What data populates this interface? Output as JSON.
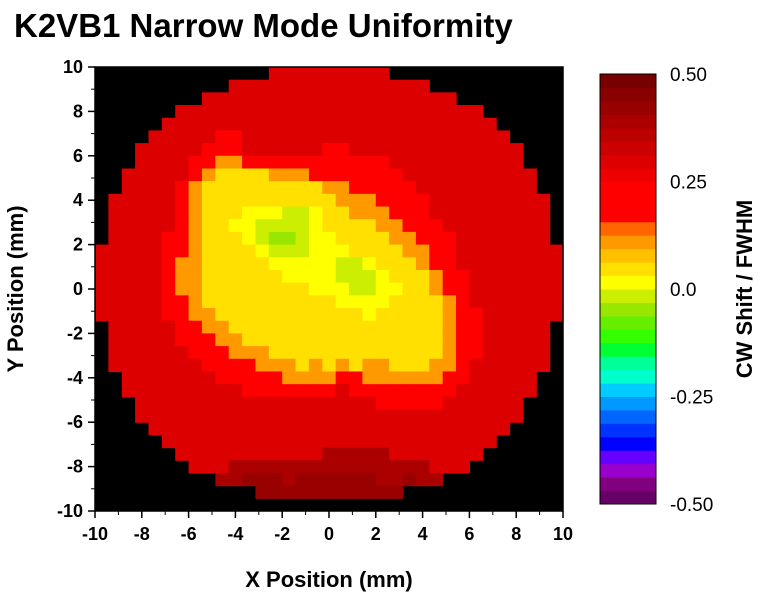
{
  "chart_data": {
    "type": "heatmap",
    "title": "K2VB1 Narrow Mode Uniformity",
    "xlabel": "X Position (mm)",
    "ylabel": "Y Position (mm)",
    "colorbar_label": "CW Shift / FWHM",
    "xlim": [
      -10,
      10
    ],
    "ylim": [
      -10,
      10
    ],
    "x_ticks": [
      -10,
      -8,
      -6,
      -4,
      -2,
      0,
      2,
      4,
      6,
      8,
      10
    ],
    "y_ticks": [
      -10,
      -8,
      -6,
      -4,
      -2,
      0,
      2,
      4,
      6,
      8,
      10
    ],
    "x_tick_labels": [
      "-10",
      "-8",
      "-6",
      "-4",
      "-2",
      "0",
      "2",
      "4",
      "6",
      "8",
      "10"
    ],
    "y_tick_labels": [
      "-10",
      "-8",
      "-6",
      "-4",
      "-2",
      "0",
      "2",
      "4",
      "6",
      "8",
      "10"
    ],
    "colorbar_range": [
      -0.5,
      0.5
    ],
    "colorbar_ticks": [
      0.5,
      0.25,
      0.0,
      -0.25,
      -0.5
    ],
    "colorbar_tick_labels": [
      "0.50",
      "0.25",
      "0.0",
      "-0.25",
      "-0.50"
    ],
    "colorscale": [
      "#660066",
      "#800080",
      "#9900cc",
      "#6600ff",
      "#0000ff",
      "#0033ff",
      "#0066ff",
      "#0099ff",
      "#00ccff",
      "#00ffcc",
      "#00ff99",
      "#00ff33",
      "#33ff00",
      "#66ee00",
      "#99e600",
      "#ccee00",
      "#ffff00",
      "#ffe000",
      "#ffc000",
      "#ff9900",
      "#ff6600",
      "#ff0000",
      "#ff0000",
      "#ff0000",
      "#ee0000",
      "#dd0000",
      "#cc0000",
      "#bb0000",
      "#aa0000",
      "#990000",
      "#880000",
      "#770000"
    ],
    "background_color": "#000000",
    "grid": false,
    "z_grid_layout": "rows listed from y=+10 (top) to y=-10 (bottom), 35 columns from x=-10 to x=+10; cell values are CW shift / FWHM; null = no data",
    "z": [
      [
        null,
        null,
        null,
        null,
        null,
        null,
        null,
        null,
        null,
        null,
        null,
        null,
        null,
        0.3,
        0.3,
        0.3,
        0.3,
        0.3,
        0.3,
        0.3,
        0.3,
        0.3,
        null,
        null,
        null,
        null,
        null,
        null,
        null,
        null,
        null,
        null,
        null,
        null,
        null
      ],
      [
        null,
        null,
        null,
        null,
        null,
        null,
        null,
        null,
        null,
        null,
        0.3,
        0.3,
        0.3,
        0.3,
        0.3,
        0.3,
        0.3,
        0.3,
        0.3,
        0.3,
        0.3,
        0.3,
        0.3,
        0.3,
        0.3,
        null,
        null,
        null,
        null,
        null,
        null,
        null,
        null,
        null,
        null
      ],
      [
        null,
        null,
        null,
        null,
        null,
        null,
        null,
        null,
        0.3,
        0.3,
        0.3,
        0.3,
        0.3,
        0.3,
        0.3,
        0.3,
        0.3,
        0.3,
        0.3,
        0.3,
        0.3,
        0.3,
        0.3,
        0.3,
        0.3,
        0.3,
        0.3,
        null,
        null,
        null,
        null,
        null,
        null,
        null,
        null
      ],
      [
        null,
        null,
        null,
        null,
        null,
        null,
        0.3,
        0.3,
        0.3,
        0.3,
        0.3,
        0.3,
        0.3,
        0.3,
        0.3,
        0.3,
        0.3,
        0.3,
        0.3,
        0.3,
        0.3,
        0.3,
        0.3,
        0.3,
        0.3,
        0.3,
        0.3,
        0.3,
        0.3,
        null,
        null,
        null,
        null,
        null,
        null
      ],
      [
        null,
        null,
        null,
        null,
        null,
        0.3,
        0.3,
        0.3,
        0.3,
        0.3,
        0.3,
        0.3,
        0.3,
        0.3,
        0.3,
        0.3,
        0.3,
        0.3,
        0.3,
        0.3,
        0.3,
        0.3,
        0.3,
        0.3,
        0.3,
        0.3,
        0.3,
        0.3,
        0.3,
        0.3,
        null,
        null,
        null,
        null,
        null
      ],
      [
        null,
        null,
        null,
        null,
        0.3,
        0.3,
        0.3,
        0.3,
        0.3,
        0.2,
        0.2,
        0.3,
        0.3,
        0.3,
        0.3,
        0.3,
        0.3,
        0.3,
        0.3,
        0.3,
        0.3,
        0.3,
        0.3,
        0.3,
        0.3,
        0.3,
        0.3,
        0.3,
        0.3,
        0.3,
        0.3,
        null,
        null,
        null,
        null
      ],
      [
        null,
        null,
        null,
        0.3,
        0.3,
        0.3,
        0.3,
        0.3,
        0.2,
        0.2,
        0.2,
        0.3,
        0.3,
        0.3,
        0.3,
        0.3,
        0.3,
        0.2,
        0.2,
        0.3,
        0.3,
        0.3,
        0.3,
        0.3,
        0.3,
        0.3,
        0.3,
        0.3,
        0.3,
        0.3,
        0.3,
        0.3,
        null,
        null,
        null
      ],
      [
        null,
        null,
        null,
        0.3,
        0.3,
        0.3,
        0.3,
        0.2,
        0.2,
        0.12,
        0.12,
        0.2,
        0.2,
        0.2,
        0.2,
        0.2,
        0.2,
        0.2,
        0.2,
        0.2,
        0.2,
        0.2,
        0.3,
        0.3,
        0.3,
        0.3,
        0.3,
        0.3,
        0.3,
        0.3,
        0.3,
        0.3,
        null,
        null,
        null
      ],
      [
        null,
        null,
        0.3,
        0.3,
        0.3,
        0.3,
        0.3,
        0.2,
        0.12,
        0.04,
        0.04,
        0.04,
        0.04,
        0.12,
        0.12,
        0.12,
        0.2,
        0.2,
        0.2,
        0.2,
        0.2,
        0.2,
        0.2,
        0.3,
        0.3,
        0.3,
        0.3,
        0.3,
        0.3,
        0.3,
        0.3,
        0.3,
        0.3,
        null,
        null
      ],
      [
        null,
        null,
        0.3,
        0.3,
        0.3,
        0.3,
        0.2,
        0.12,
        0.04,
        0.04,
        0.04,
        0.04,
        0.04,
        0.04,
        0.04,
        0.04,
        0.04,
        0.12,
        0.12,
        0.2,
        0.2,
        0.2,
        0.2,
        0.2,
        0.3,
        0.3,
        0.3,
        0.3,
        0.3,
        0.3,
        0.3,
        0.3,
        0.3,
        null,
        null
      ],
      [
        null,
        0.3,
        0.3,
        0.3,
        0.3,
        0.3,
        0.2,
        0.12,
        0.04,
        0.04,
        0.04,
        0.04,
        0.04,
        0.04,
        0.04,
        0.04,
        0.04,
        0.04,
        0.12,
        0.12,
        0.12,
        0.2,
        0.2,
        0.2,
        0.2,
        0.3,
        0.3,
        0.3,
        0.3,
        0.3,
        0.3,
        0.3,
        0.3,
        0.3,
        null
      ],
      [
        null,
        0.3,
        0.3,
        0.3,
        0.3,
        0.3,
        0.2,
        0.12,
        0.04,
        0.04,
        0.04,
        0.0,
        0.0,
        0.0,
        -0.03,
        -0.03,
        0.0,
        0.04,
        0.04,
        0.12,
        0.12,
        0.12,
        0.2,
        0.2,
        0.2,
        0.3,
        0.3,
        0.3,
        0.3,
        0.3,
        0.3,
        0.3,
        0.3,
        0.3,
        null
      ],
      [
        null,
        0.3,
        0.3,
        0.3,
        0.3,
        0.3,
        0.2,
        0.12,
        0.04,
        0.04,
        0.0,
        0.0,
        -0.03,
        -0.03,
        -0.03,
        -0.03,
        0.0,
        0.04,
        0.04,
        0.04,
        0.04,
        0.12,
        0.12,
        0.2,
        0.2,
        0.2,
        0.3,
        0.3,
        0.3,
        0.3,
        0.3,
        0.3,
        0.3,
        0.3,
        null
      ],
      [
        null,
        0.3,
        0.3,
        0.3,
        0.3,
        0.2,
        0.2,
        0.12,
        0.04,
        0.04,
        0.04,
        0.0,
        -0.03,
        -0.05,
        -0.05,
        -0.03,
        0.0,
        0.0,
        0.04,
        0.04,
        0.04,
        0.04,
        0.12,
        0.12,
        0.2,
        0.2,
        0.2,
        0.3,
        0.3,
        0.3,
        0.3,
        0.3,
        0.3,
        0.3,
        null
      ],
      [
        0.3,
        0.3,
        0.3,
        0.3,
        0.3,
        0.2,
        0.2,
        0.12,
        0.04,
        0.04,
        0.04,
        0.04,
        0.0,
        -0.03,
        -0.03,
        -0.03,
        0.0,
        0.0,
        0.0,
        0.04,
        0.04,
        0.04,
        0.04,
        0.12,
        0.12,
        0.2,
        0.2,
        0.3,
        0.3,
        0.3,
        0.3,
        0.3,
        0.3,
        0.3,
        0.3
      ],
      [
        0.3,
        0.3,
        0.3,
        0.3,
        0.3,
        0.2,
        0.12,
        0.12,
        0.04,
        0.04,
        0.04,
        0.04,
        0.04,
        0.0,
        0.0,
        0.0,
        0.0,
        0.0,
        -0.03,
        -0.03,
        0.0,
        0.04,
        0.04,
        0.04,
        0.12,
        0.2,
        0.2,
        0.3,
        0.3,
        0.3,
        0.3,
        0.3,
        0.3,
        0.3,
        0.3
      ],
      [
        0.3,
        0.3,
        0.3,
        0.3,
        0.3,
        0.2,
        0.12,
        0.12,
        0.04,
        0.04,
        0.04,
        0.04,
        0.04,
        0.04,
        0.0,
        0.0,
        0.0,
        0.0,
        -0.03,
        -0.03,
        -0.03,
        0.0,
        0.04,
        0.04,
        0.04,
        0.12,
        0.2,
        0.2,
        0.3,
        0.3,
        0.3,
        0.3,
        0.3,
        0.3,
        0.3
      ],
      [
        0.3,
        0.3,
        0.3,
        0.3,
        0.3,
        0.2,
        0.12,
        0.12,
        0.04,
        0.04,
        0.04,
        0.04,
        0.04,
        0.04,
        0.04,
        0.04,
        0.0,
        0.0,
        0.0,
        -0.03,
        -0.03,
        0.0,
        0.0,
        0.04,
        0.04,
        0.12,
        0.2,
        0.2,
        0.3,
        0.3,
        0.3,
        0.3,
        0.3,
        0.3,
        0.3
      ],
      [
        0.3,
        0.3,
        0.3,
        0.3,
        0.3,
        0.2,
        0.2,
        0.12,
        0.04,
        0.04,
        0.04,
        0.04,
        0.04,
        0.04,
        0.04,
        0.04,
        0.04,
        0.04,
        0.0,
        0.0,
        0.0,
        0.0,
        0.04,
        0.04,
        0.04,
        0.04,
        0.12,
        0.2,
        0.3,
        0.3,
        0.3,
        0.3,
        0.3,
        0.3,
        0.3
      ],
      [
        0.3,
        0.3,
        0.3,
        0.3,
        0.3,
        0.2,
        0.2,
        0.12,
        0.12,
        0.04,
        0.04,
        0.04,
        0.04,
        0.04,
        0.04,
        0.04,
        0.04,
        0.04,
        0.04,
        0.04,
        0.0,
        0.04,
        0.04,
        0.04,
        0.04,
        0.04,
        0.12,
        0.2,
        0.2,
        0.3,
        0.3,
        0.3,
        0.3,
        0.3,
        0.3
      ],
      [
        null,
        0.3,
        0.3,
        0.3,
        0.3,
        0.3,
        0.2,
        0.2,
        0.12,
        0.12,
        0.04,
        0.04,
        0.04,
        0.04,
        0.04,
        0.04,
        0.04,
        0.04,
        0.04,
        0.04,
        0.04,
        0.04,
        0.04,
        0.04,
        0.04,
        0.04,
        0.12,
        0.2,
        0.2,
        0.3,
        0.3,
        0.3,
        0.3,
        0.3,
        null
      ],
      [
        null,
        0.3,
        0.3,
        0.3,
        0.3,
        0.3,
        0.2,
        0.2,
        0.2,
        0.12,
        0.12,
        0.04,
        0.04,
        0.04,
        0.04,
        0.04,
        0.04,
        0.04,
        0.04,
        0.04,
        0.04,
        0.04,
        0.04,
        0.04,
        0.04,
        0.04,
        0.12,
        0.2,
        0.2,
        0.3,
        0.3,
        0.3,
        0.3,
        0.3,
        null
      ],
      [
        null,
        0.3,
        0.3,
        0.3,
        0.3,
        0.3,
        0.3,
        0.2,
        0.2,
        0.2,
        0.12,
        0.12,
        0.12,
        0.04,
        0.04,
        0.04,
        0.04,
        0.04,
        0.04,
        0.04,
        0.04,
        0.04,
        0.04,
        0.04,
        0.04,
        0.04,
        0.12,
        0.2,
        0.2,
        0.3,
        0.3,
        0.3,
        0.3,
        0.3,
        null
      ],
      [
        null,
        0.3,
        0.3,
        0.3,
        0.3,
        0.3,
        0.3,
        0.3,
        0.2,
        0.2,
        0.2,
        0.2,
        0.12,
        0.12,
        0.12,
        0.04,
        0.12,
        0.04,
        0.12,
        0.04,
        0.12,
        0.12,
        0.04,
        0.04,
        0.04,
        0.12,
        0.12,
        0.2,
        0.3,
        0.3,
        0.3,
        0.3,
        0.3,
        0.3,
        null
      ],
      [
        null,
        null,
        0.3,
        0.3,
        0.3,
        0.3,
        0.3,
        0.3,
        0.3,
        0.2,
        0.2,
        0.2,
        0.2,
        0.2,
        0.12,
        0.12,
        0.12,
        0.12,
        0.2,
        0.2,
        0.12,
        0.12,
        0.12,
        0.12,
        0.12,
        0.12,
        0.2,
        0.2,
        0.3,
        0.3,
        0.3,
        0.3,
        0.3,
        null,
        null
      ],
      [
        null,
        null,
        0.3,
        0.3,
        0.3,
        0.3,
        0.3,
        0.3,
        0.3,
        0.3,
        0.3,
        0.2,
        0.2,
        0.2,
        0.2,
        0.2,
        0.2,
        0.2,
        0.3,
        0.2,
        0.2,
        0.2,
        0.2,
        0.2,
        0.2,
        0.2,
        0.2,
        0.3,
        0.3,
        0.3,
        0.3,
        0.3,
        0.3,
        null,
        null
      ],
      [
        null,
        null,
        null,
        0.3,
        0.3,
        0.3,
        0.3,
        0.3,
        0.3,
        0.3,
        0.3,
        0.3,
        0.3,
        0.3,
        0.3,
        0.3,
        0.3,
        0.3,
        0.3,
        0.3,
        0.3,
        0.2,
        0.2,
        0.2,
        0.2,
        0.2,
        0.3,
        0.3,
        0.3,
        0.3,
        0.3,
        0.3,
        null,
        null,
        null
      ],
      [
        null,
        null,
        null,
        0.3,
        0.3,
        0.3,
        0.3,
        0.3,
        0.3,
        0.3,
        0.3,
        0.3,
        0.3,
        0.3,
        0.3,
        0.3,
        0.3,
        0.3,
        0.3,
        0.3,
        0.3,
        0.3,
        0.3,
        0.3,
        0.3,
        0.3,
        0.3,
        0.3,
        0.3,
        0.3,
        0.3,
        0.3,
        null,
        null,
        null
      ],
      [
        null,
        null,
        null,
        null,
        0.3,
        0.3,
        0.3,
        0.3,
        0.3,
        0.3,
        0.3,
        0.3,
        0.3,
        0.3,
        0.3,
        0.3,
        0.3,
        0.3,
        0.3,
        0.3,
        0.3,
        0.3,
        0.3,
        0.3,
        0.3,
        0.3,
        0.3,
        0.3,
        0.3,
        0.3,
        0.3,
        null,
        null,
        null,
        null
      ],
      [
        null,
        null,
        null,
        null,
        null,
        0.3,
        0.3,
        0.3,
        0.3,
        0.3,
        0.3,
        0.3,
        0.3,
        0.3,
        0.3,
        0.3,
        0.3,
        0.3,
        0.3,
        0.3,
        0.3,
        0.3,
        0.3,
        0.3,
        0.3,
        0.3,
        0.3,
        0.3,
        0.3,
        0.3,
        null,
        null,
        null,
        null,
        null
      ],
      [
        null,
        null,
        null,
        null,
        null,
        null,
        0.3,
        0.3,
        0.3,
        0.3,
        0.3,
        0.3,
        0.3,
        0.3,
        0.3,
        0.3,
        0.3,
        0.38,
        0.38,
        0.38,
        0.38,
        0.38,
        0.3,
        0.3,
        0.3,
        0.3,
        0.3,
        0.3,
        0.3,
        null,
        null,
        null,
        null,
        null,
        null
      ],
      [
        null,
        null,
        null,
        null,
        null,
        null,
        null,
        0.3,
        0.3,
        0.3,
        0.38,
        0.38,
        0.38,
        0.38,
        0.38,
        0.38,
        0.38,
        0.38,
        0.38,
        0.38,
        0.38,
        0.38,
        0.38,
        0.38,
        0.38,
        0.3,
        0.3,
        0.3,
        null,
        null,
        null,
        null,
        null,
        null,
        null
      ],
      [
        null,
        null,
        null,
        null,
        null,
        null,
        null,
        null,
        null,
        0.38,
        0.38,
        0.42,
        0.42,
        0.42,
        0.38,
        0.42,
        0.42,
        0.42,
        0.42,
        0.42,
        0.42,
        0.38,
        0.38,
        0.42,
        0.38,
        0.38,
        null,
        null,
        null,
        null,
        null,
        null,
        null,
        null,
        null
      ],
      [
        null,
        null,
        null,
        null,
        null,
        null,
        null,
        null,
        null,
        null,
        null,
        null,
        0.42,
        0.42,
        0.42,
        0.42,
        0.42,
        0.42,
        0.42,
        0.42,
        0.42,
        0.42,
        0.42,
        null,
        null,
        null,
        null,
        null,
        null,
        null,
        null,
        null,
        null,
        null,
        null
      ],
      [
        null,
        null,
        null,
        null,
        null,
        null,
        null,
        null,
        null,
        null,
        null,
        null,
        null,
        null,
        null,
        null,
        null,
        null,
        null,
        null,
        null,
        null,
        null,
        null,
        null,
        null,
        null,
        null,
        null,
        null,
        null,
        null,
        null,
        null,
        null
      ]
    ]
  }
}
